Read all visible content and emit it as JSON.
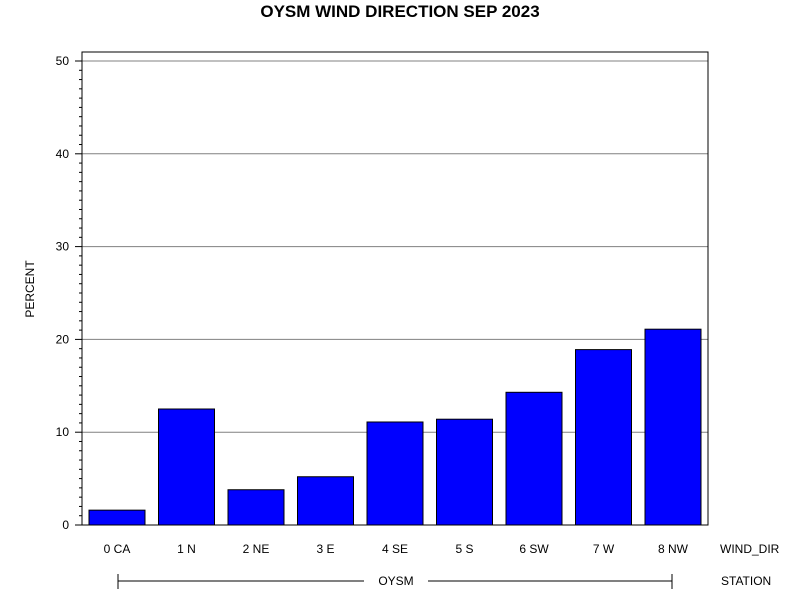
{
  "chart_data": {
    "type": "bar",
    "title": "OYSM WIND DIRECTION SEP 2023",
    "ylabel": "PERCENT",
    "xlabel": "WIND_DIR",
    "group_axis_label": "STATION",
    "group_name": "OYSM",
    "categories": [
      "0 CA",
      "1 N",
      "2 NE",
      "3 E",
      "4 SE",
      "5 S",
      "6 SW",
      "7 W",
      "8 NW"
    ],
    "values": [
      1.6,
      12.5,
      3.8,
      5.2,
      11.1,
      11.4,
      14.3,
      18.9,
      21.1
    ],
    "yticks": [
      "0",
      "10",
      "20",
      "30",
      "40",
      "50"
    ],
    "ylim": [
      0,
      50
    ],
    "grid": true,
    "bar_color": "#0000ff"
  }
}
